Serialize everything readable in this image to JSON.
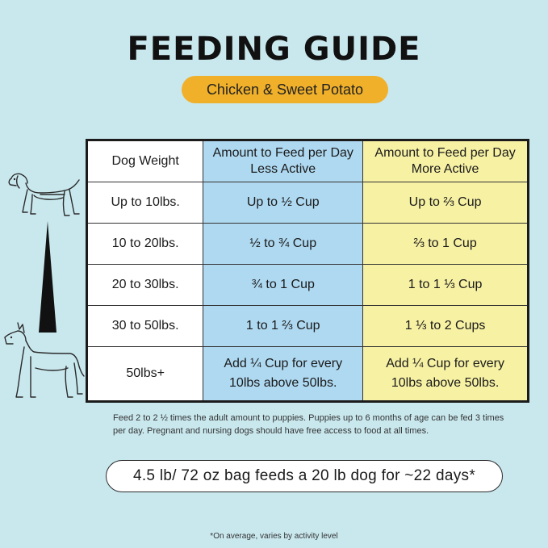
{
  "header": {
    "title": "FEEDING GUIDE",
    "badge": "Chicken & Sweet Potato"
  },
  "table": {
    "headers": [
      {
        "line1": "Dog Weight",
        "line2": ""
      },
      {
        "line1": "Amount to Feed per Day",
        "line2": "Less Active"
      },
      {
        "line1": "Amount to Feed per Day",
        "line2": "More Active"
      }
    ],
    "rows": [
      {
        "weight": "Up to 10lbs.",
        "less": "Up to ½ Cup",
        "more": "Up to ⅔ Cup"
      },
      {
        "weight": "10 to 20lbs.",
        "less": "½ to ¾ Cup",
        "more": "⅔ to 1 Cup"
      },
      {
        "weight": "20 to 30lbs.",
        "less": "¾ to 1 Cup",
        "more": "1 to 1 ⅓ Cup"
      },
      {
        "weight": "30 to 50lbs.",
        "less": "1 to 1 ⅔ Cup",
        "more": "1 ⅓ to 2 Cups"
      },
      {
        "weight": "50lbs+",
        "less_line1": "Add ¼ Cup for every",
        "less_line2": "10lbs above 50lbs.",
        "more_line1": "Add ¼ Cup for every",
        "more_line2": "10lbs above 50lbs."
      }
    ]
  },
  "note": "Feed 2 to 2 ½ times the adult amount to puppies. Puppies up to 6 months of age can be fed 3 times per day. Pregnant and nursing dogs should have free access to food at all times.",
  "callout": "4.5 lb/ 72 oz bag feeds a 20 lb dog for ~22 days*",
  "footnote": "*On average, varies by activity level",
  "icons": [
    "small-dog-icon",
    "size-wedge-icon",
    "large-dog-icon"
  ],
  "colors": {
    "background": "#c9e8ee",
    "badge": "#f0b02a",
    "less_active": "#afd9f1",
    "more_active": "#f7f1a4"
  }
}
